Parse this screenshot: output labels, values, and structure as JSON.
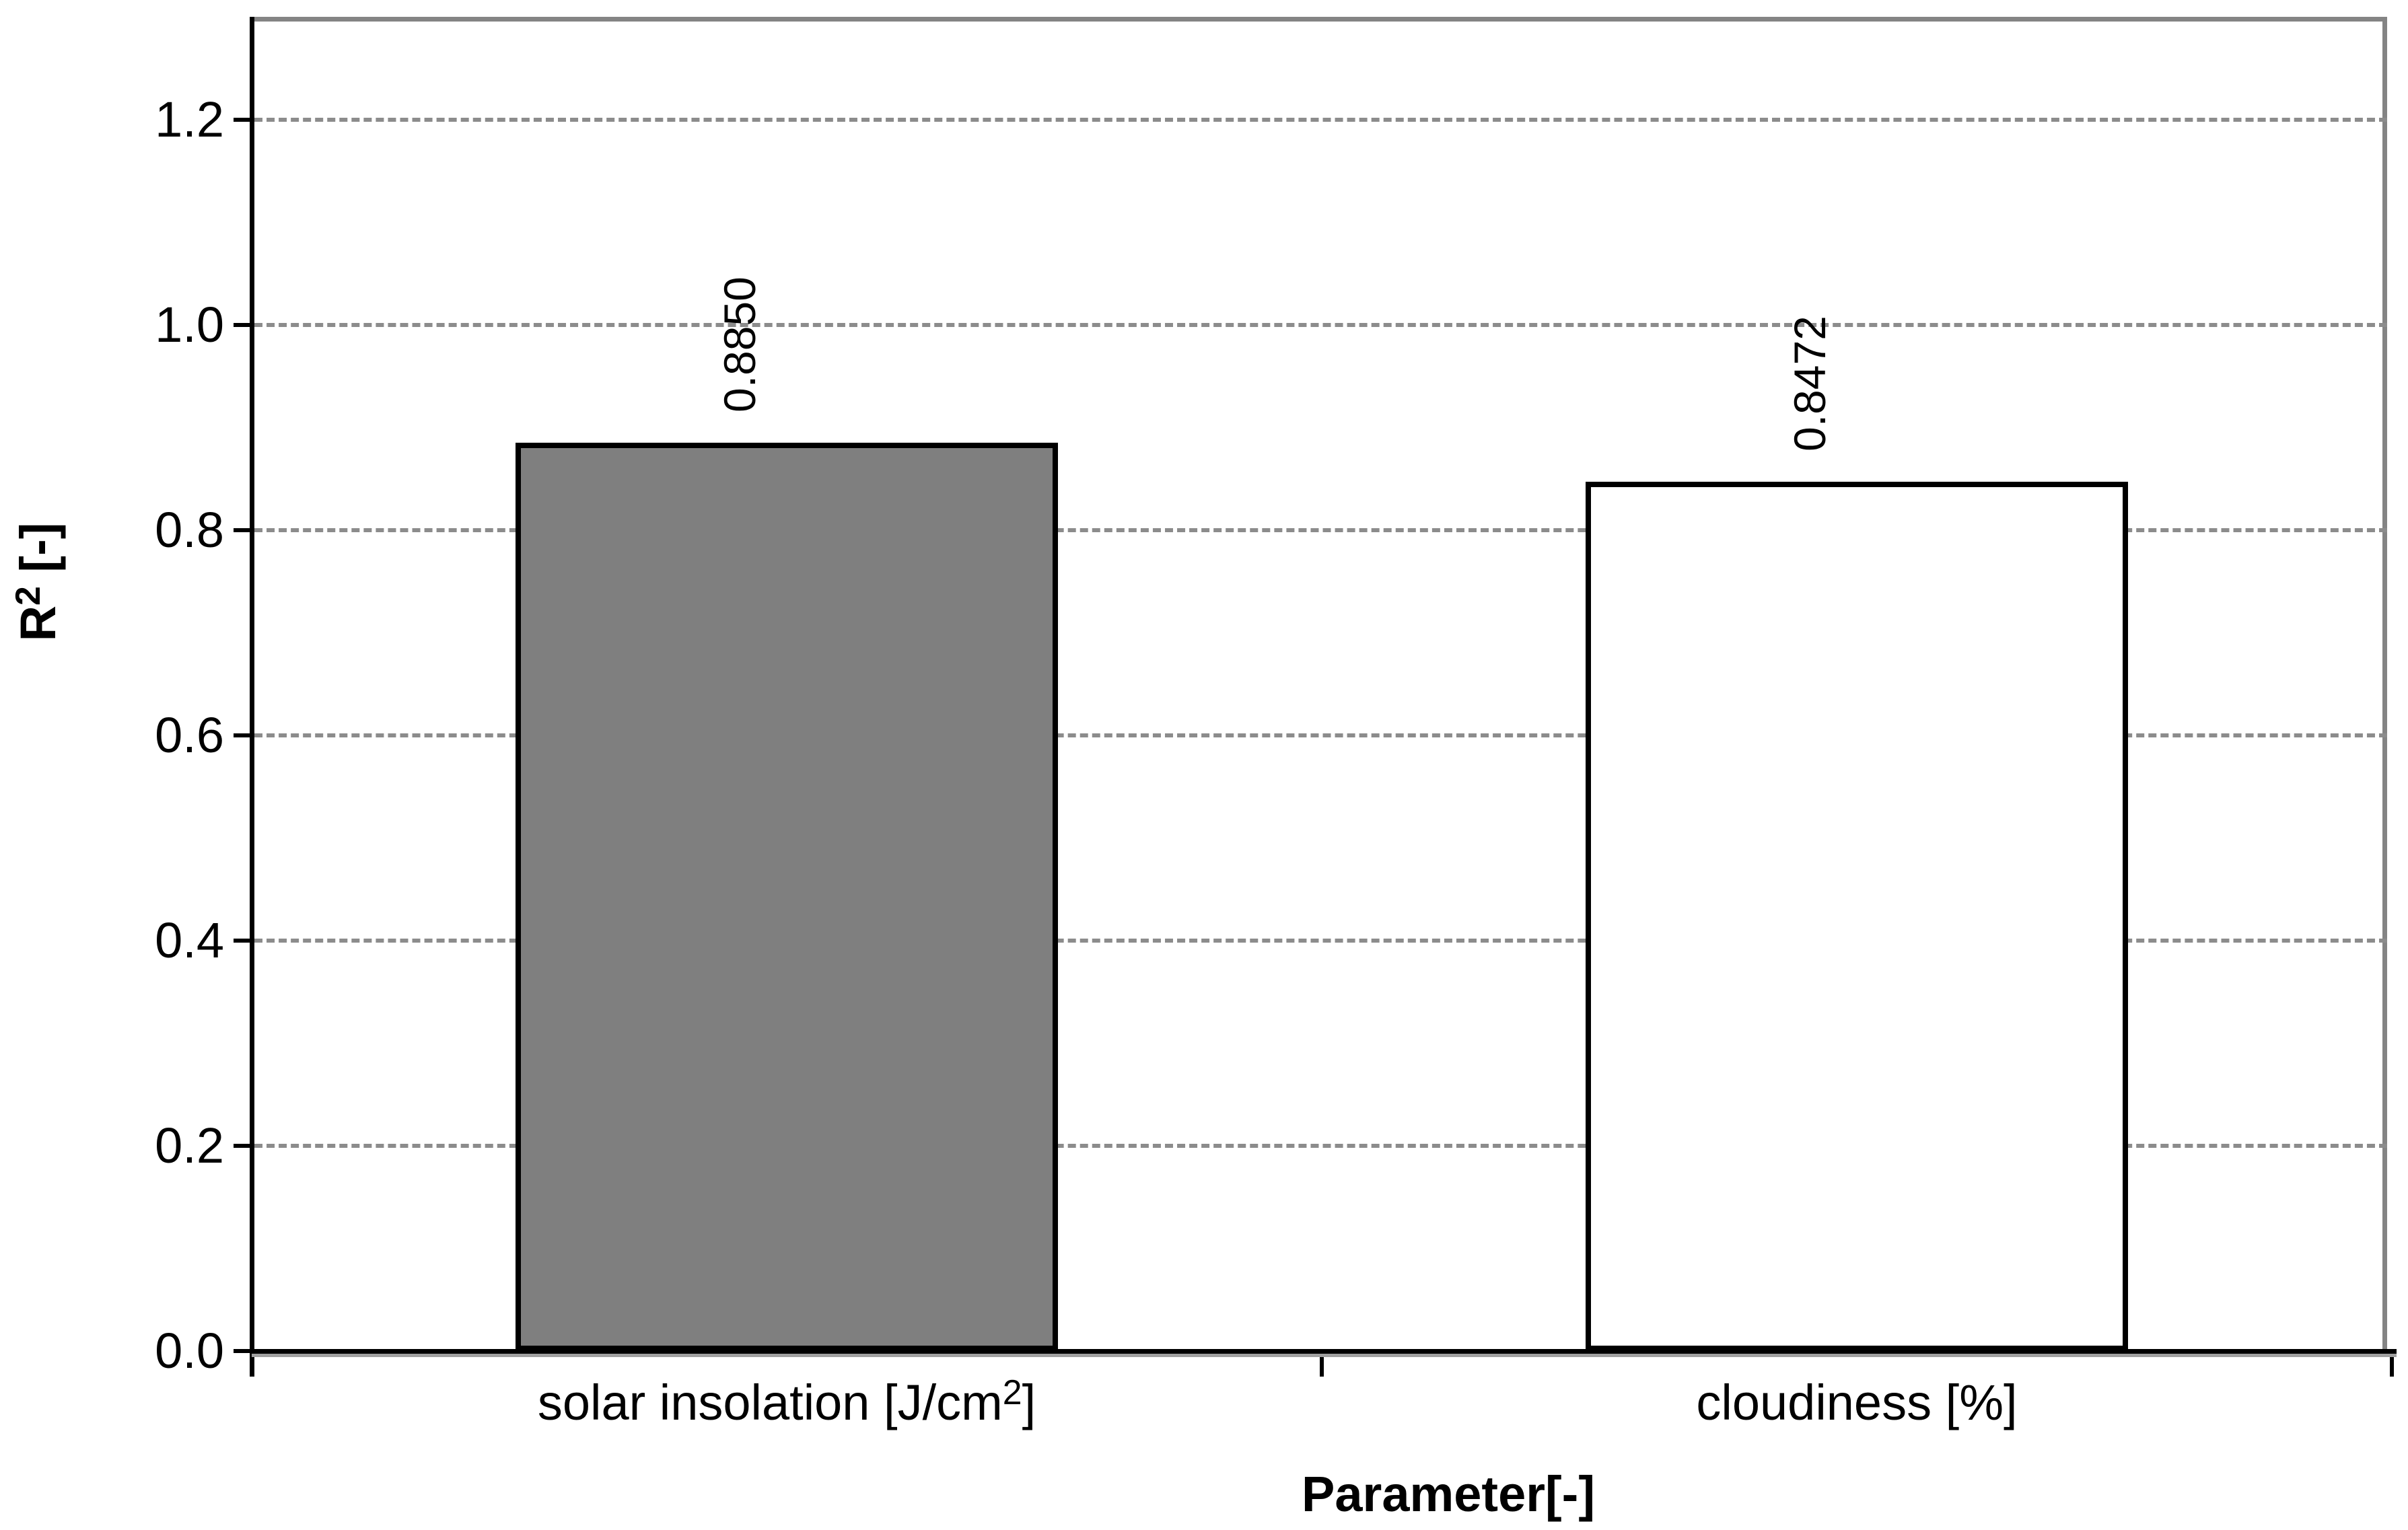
{
  "chart_data": {
    "type": "bar",
    "title": "",
    "xlabel": "Parameter[-]",
    "ylabel_parts": {
      "base": "R",
      "sup": "2",
      "rest": " [-]"
    },
    "categories": [
      {
        "base": "solar insolation [J/cm",
        "sup": "2",
        "rest": "]"
      },
      {
        "base": "cloudiness [%]",
        "sup": "",
        "rest": ""
      }
    ],
    "series": [
      {
        "name": "R2",
        "values": [
          0.885,
          0.8472
        ]
      }
    ],
    "value_labels": [
      "0.8850",
      "0.8472"
    ],
    "ylim": [
      0,
      1.3
    ],
    "yticks": [
      0,
      0.2,
      0.4,
      0.6,
      0.8,
      1.0,
      1.2
    ],
    "ytick_labels": [
      "0.0",
      "0.2",
      "0.4",
      "0.6",
      "0.8",
      "1.0",
      "1.2"
    ],
    "grid": "horizontal-dashed",
    "legend": "none",
    "bar_colors": [
      "#7F7F7F",
      "#FFFFFF"
    ],
    "bar_border_color": "#000000",
    "gridline_color": "#8C8C8C",
    "plot_border_color": "#848484",
    "axis_color": "#000000",
    "background_color": "#FFFFFF"
  }
}
